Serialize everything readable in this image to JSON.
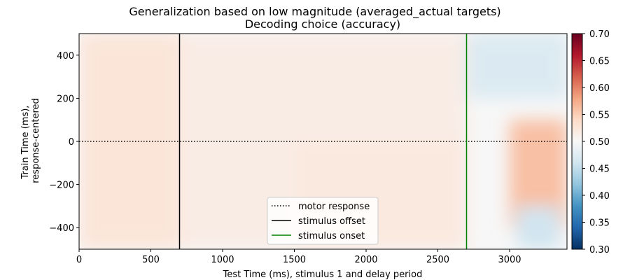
{
  "chart_data": {
    "type": "heatmap",
    "title": "Generalization based on low magnitude (averaged_actual targets)",
    "subtitle": "Decoding choice (accuracy)",
    "xlabel": "Test Time (ms), stimulus 1 and delay period",
    "ylabel_line1": "Train Time (ms),",
    "ylabel_line2": "response-centered",
    "xlim": [
      0,
      3400
    ],
    "ylim": [
      -500,
      500
    ],
    "x_ticks": [
      0,
      500,
      1000,
      1500,
      2000,
      2500,
      3000
    ],
    "x_tick_labels": [
      "0",
      "500",
      "1000",
      "1500",
      "2000",
      "2500",
      "3000"
    ],
    "y_ticks": [
      400,
      200,
      0,
      -200,
      -400
    ],
    "y_tick_labels": [
      "400",
      "200",
      "0",
      "−200",
      "−400"
    ],
    "colorbar": {
      "colormap": "RdBu_r",
      "vmin": 0.3,
      "vmax": 0.7,
      "ticks": [
        0.7,
        0.65,
        0.6,
        0.55,
        0.5,
        0.45,
        0.4,
        0.35,
        0.3
      ],
      "tick_labels": [
        "0.70",
        "0.65",
        "0.60",
        "0.55",
        "0.50",
        "0.45",
        "0.40",
        "0.35",
        "0.30"
      ]
    },
    "reference_lines": [
      {
        "orientation": "horizontal",
        "value": 0,
        "style": "dotted",
        "color": "#000000",
        "label": "motor response"
      },
      {
        "orientation": "vertical",
        "value": 700,
        "style": "solid",
        "color": "#000000",
        "label": "stimulus offset"
      },
      {
        "orientation": "vertical",
        "value": 2700,
        "style": "solid",
        "color": "#008000",
        "label": "stimulus onset"
      }
    ],
    "legend": {
      "placement": "lower-center",
      "entries": [
        "motor response",
        "stimulus offset",
        "stimulus onset"
      ]
    },
    "heatmap_regions": [
      {
        "x": [
          0,
          700
        ],
        "y": [
          -500,
          500
        ],
        "value": 0.525
      },
      {
        "x": [
          700,
          2700
        ],
        "y": [
          -500,
          500
        ],
        "value": 0.515
      },
      {
        "x": [
          1500,
          2700
        ],
        "y": [
          -500,
          0
        ],
        "value": 0.52
      },
      {
        "x": [
          2700,
          3400
        ],
        "y": [
          200,
          500
        ],
        "value": 0.47
      },
      {
        "x": [
          3000,
          3400
        ],
        "y": [
          -400,
          100
        ],
        "value": 0.56
      },
      {
        "x": [
          3050,
          3350
        ],
        "y": [
          -500,
          -300
        ],
        "value": 0.46
      }
    ]
  }
}
